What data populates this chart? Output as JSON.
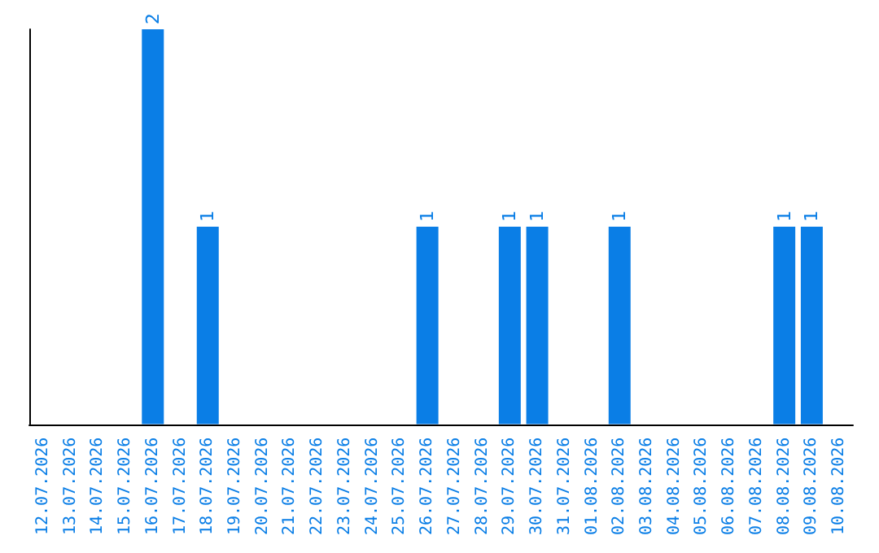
{
  "chart_data": {
    "type": "bar",
    "categories": [
      "12.07.2026",
      "13.07.2026",
      "14.07.2026",
      "15.07.2026",
      "16.07.2026",
      "17.07.2026",
      "18.07.2026",
      "19.07.2026",
      "20.07.2026",
      "21.07.2026",
      "22.07.2026",
      "23.07.2026",
      "24.07.2026",
      "25.07.2026",
      "26.07.2026",
      "27.07.2026",
      "28.07.2026",
      "29.07.2026",
      "30.07.2026",
      "31.07.2026",
      "01.08.2026",
      "02.08.2026",
      "03.08.2026",
      "04.08.2026",
      "05.08.2026",
      "06.08.2026",
      "07.08.2026",
      "08.08.2026",
      "09.08.2026",
      "10.08.2026"
    ],
    "values": [
      0,
      0,
      0,
      0,
      2,
      0,
      1,
      0,
      0,
      0,
      0,
      0,
      0,
      0,
      1,
      0,
      0,
      1,
      1,
      0,
      0,
      1,
      0,
      0,
      0,
      0,
      0,
      1,
      1,
      0
    ],
    "value_labels": [
      null,
      null,
      null,
      null,
      "2",
      null,
      "1",
      null,
      null,
      null,
      null,
      null,
      null,
      null,
      "1",
      null,
      null,
      "1",
      "1",
      null,
      null,
      "1",
      null,
      null,
      null,
      null,
      null,
      "1",
      "1",
      null
    ],
    "color": "#0a7ee6",
    "grid": false,
    "tick_labels": "x"
  }
}
